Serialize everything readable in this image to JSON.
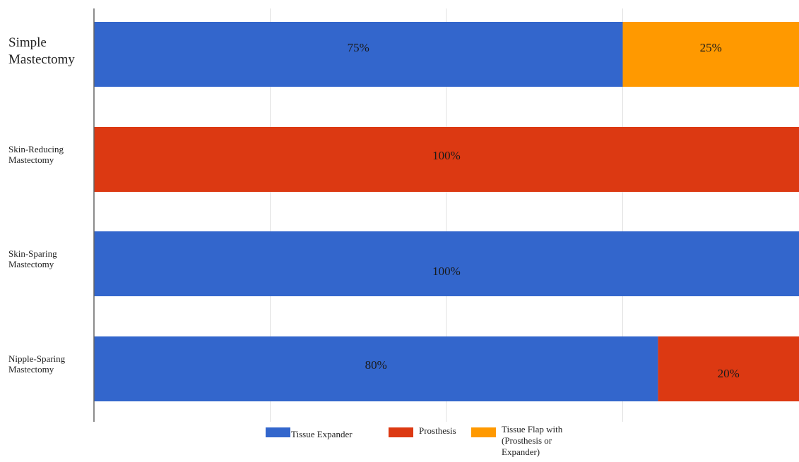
{
  "chart_data": {
    "type": "bar",
    "orientation": "horizontal",
    "stacked": true,
    "categories": [
      "Simple Mastectomy",
      "Skin-Reducing Mastectomy",
      "Skin-Sparing Mastectomy",
      "Nipple-Sparing Mastectomy"
    ],
    "series": [
      {
        "name": "Tissue Expander",
        "color": "#3366cc",
        "values": [
          75,
          0,
          100,
          80
        ]
      },
      {
        "name": "Prosthesis",
        "color": "#dc3912",
        "values": [
          0,
          100,
          0,
          20
        ]
      },
      {
        "name": "Tissue Flap with (Prosthesis or Expander)",
        "color": "#ff9900",
        "values": [
          25,
          0,
          0,
          0
        ]
      }
    ],
    "data_labels": [
      [
        "75%",
        "",
        "25%"
      ],
      [
        "",
        "100%",
        ""
      ],
      [
        "100%",
        "",
        ""
      ],
      [
        "80%",
        "20%",
        ""
      ]
    ],
    "xlim": [
      0,
      100
    ],
    "grid": true,
    "legend_position": "bottom",
    "title": "",
    "xlabel": "",
    "ylabel": ""
  }
}
